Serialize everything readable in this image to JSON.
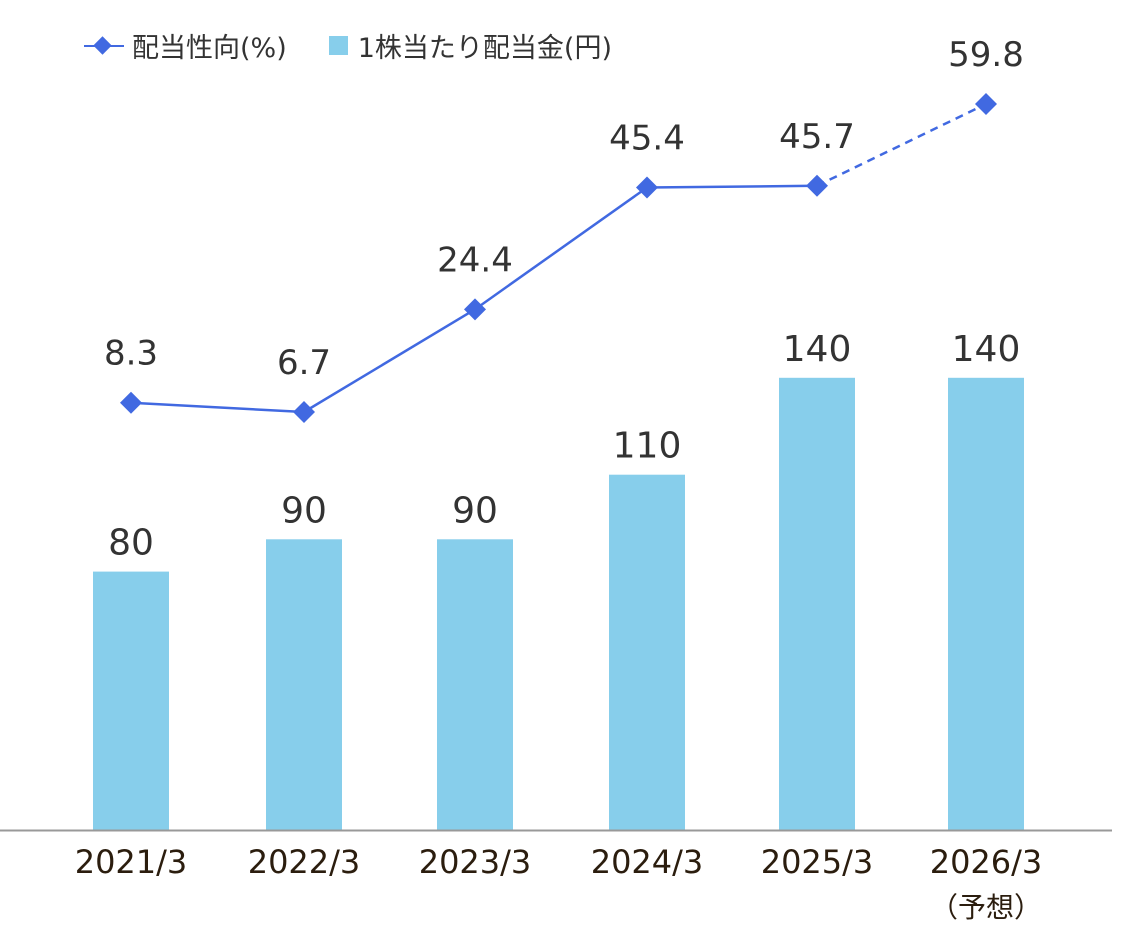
{
  "chart_data": {
    "type": "bar",
    "categories": [
      "2021/3",
      "2022/3",
      "2023/3",
      "2024/3",
      "2025/3",
      "2026/3"
    ],
    "category_notes": [
      "",
      "",
      "",
      "",
      "",
      "（予想）"
    ],
    "series": [
      {
        "name": "1株当たり配当金(円)",
        "type": "bar",
        "values": [
          80,
          90,
          90,
          110,
          140,
          140
        ],
        "color": "#87CEEB",
        "labels": [
          "80",
          "90",
          "90",
          "110",
          "140",
          "140"
        ]
      },
      {
        "name": "配当性向(%)",
        "type": "line",
        "values": [
          8.3,
          6.7,
          24.4,
          45.4,
          45.7,
          59.8
        ],
        "color": "#4169E1",
        "labels": [
          "8.3",
          "6.7",
          "24.4",
          "45.4",
          "45.7",
          "59.8"
        ],
        "dashed_last_segment": true
      }
    ],
    "legend": [
      "配当性向(%)",
      "1株当たり配当金(円)"
    ],
    "legend_position": "top-left",
    "title": "",
    "xlabel": "",
    "ylabel": "",
    "grid": false,
    "axis_color": "#999999",
    "label_color": "#333333",
    "tick_color": "#2b1d0e"
  }
}
